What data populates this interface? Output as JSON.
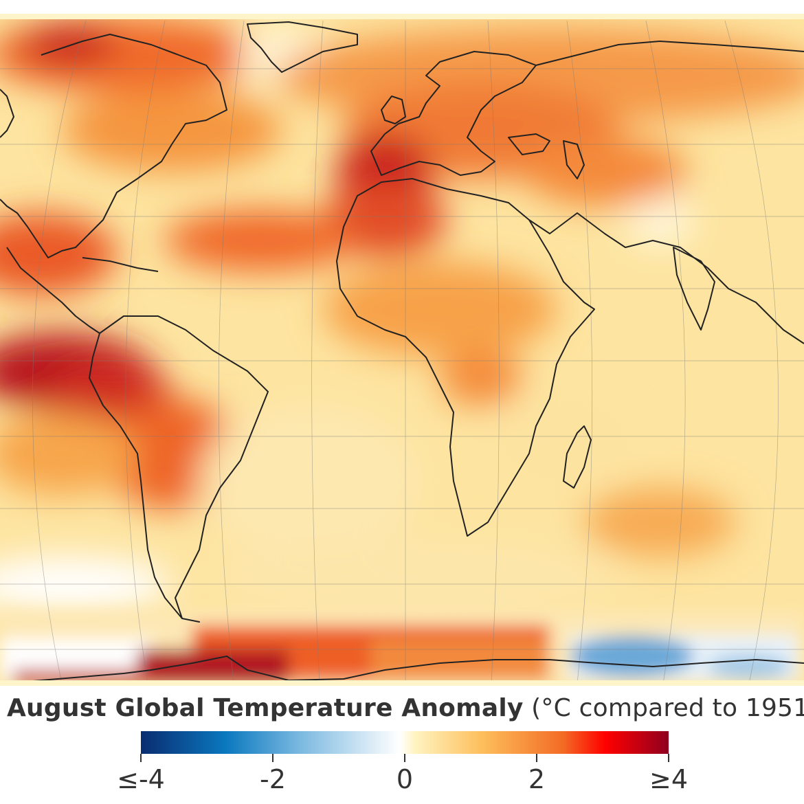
{
  "title": {
    "bold": "August Global Temperature Anomaly",
    "rest": " (°C compared to 1951"
  },
  "legend": {
    "ticks": [
      {
        "value": -4,
        "label": "≤-4"
      },
      {
        "value": -2,
        "label": "-2"
      },
      {
        "value": 0,
        "label": "0"
      },
      {
        "value": 2,
        "label": "2"
      },
      {
        "value": 4,
        "label": "≥4"
      }
    ],
    "colors": [
      "#0a2c70",
      "#0a78bf",
      "#7ab8e0",
      "#ffffff",
      "#fff3c0",
      "#fdbd5a",
      "#f36b25",
      "#ff0000",
      "#8f0020"
    ]
  },
  "map": {
    "projection": "Robinson-like world map, centered near 0° longitude",
    "background_color": "#fde9a8",
    "coastline_color": "#222222"
  }
}
